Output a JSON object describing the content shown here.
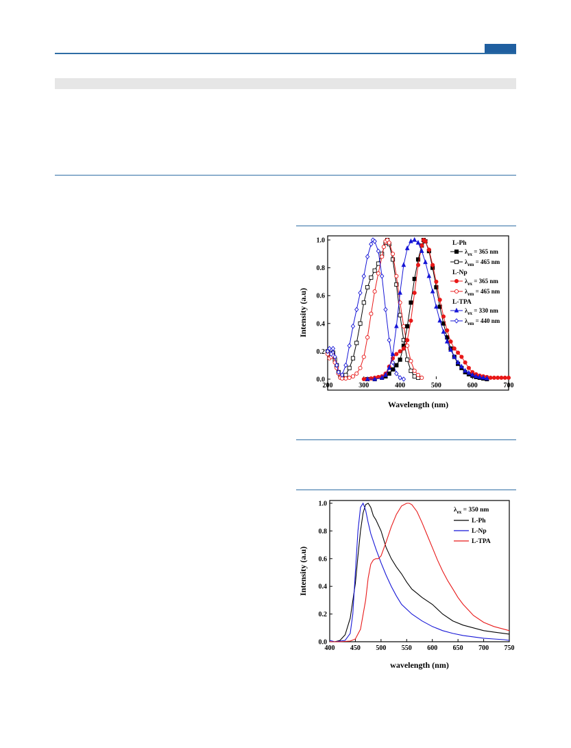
{
  "header": {
    "accent_color": "#1f5fa0",
    "rule_color": "#2e6da4"
  },
  "table_band": {
    "color": "#e6e6e6"
  },
  "chart_data": [
    {
      "type": "line",
      "xlabel": "Wavelength (nm)",
      "ylabel": "Intensity (a.u)",
      "xlim": [
        200,
        700
      ],
      "ylim": [
        0.0,
        1.0
      ],
      "xticks": [
        "200",
        "300",
        "400",
        "500",
        "600",
        "700"
      ],
      "yticks": [
        "0.0",
        "0.2",
        "0.4",
        "0.6",
        "0.8",
        "1.0"
      ],
      "grid": false,
      "legend_placement": "top-right",
      "groups": [
        {
          "label": "L-Ph",
          "entries": [
            {
              "sub": "ex",
              "value": " = 365 nm",
              "marker": "filled-square",
              "color": "#000000"
            },
            {
              "sub": "em",
              "value": " = 465 nm",
              "marker": "open-square",
              "color": "#000000"
            }
          ]
        },
        {
          "label": "L-Np",
          "entries": [
            {
              "sub": "ex",
              "value": " = 365 nm",
              "marker": "filled-circle",
              "color": "#e81818"
            },
            {
              "sub": "em",
              "value": " = 465 nm",
              "marker": "open-circle",
              "color": "#e81818"
            }
          ]
        },
        {
          "label": "L-TPA",
          "entries": [
            {
              "sub": "ex",
              "value": " = 330 nm",
              "marker": "filled-triangle",
              "color": "#1515d6"
            },
            {
              "sub": "em",
              "value": " = 440 nm",
              "marker": "open-diamond",
              "color": "#1515d6"
            }
          ]
        }
      ],
      "series": [
        {
          "color": "#000000",
          "marker": "open-square",
          "x": [
            200,
            205,
            210,
            215,
            220,
            225,
            230,
            235,
            240,
            250,
            260,
            270,
            280,
            290,
            300,
            310,
            320,
            330,
            340,
            350,
            360,
            365,
            370,
            380,
            390,
            400,
            410,
            420,
            430,
            440,
            450
          ],
          "y": [
            0.2,
            0.17,
            0.17,
            0.19,
            0.14,
            0.1,
            0.05,
            0.02,
            0.01,
            0.03,
            0.08,
            0.15,
            0.26,
            0.4,
            0.55,
            0.66,
            0.73,
            0.78,
            0.83,
            0.9,
            0.98,
            1.0,
            0.97,
            0.86,
            0.68,
            0.46,
            0.28,
            0.14,
            0.06,
            0.02,
            0.01
          ]
        },
        {
          "color": "#e81818",
          "marker": "open-circle",
          "x": [
            200,
            205,
            210,
            215,
            220,
            225,
            230,
            235,
            240,
            250,
            260,
            270,
            280,
            290,
            300,
            310,
            320,
            330,
            340,
            350,
            355,
            360,
            365,
            370,
            380,
            390,
            400,
            410,
            420,
            430,
            440,
            450,
            460
          ],
          "y": [
            0.18,
            0.15,
            0.16,
            0.17,
            0.12,
            0.08,
            0.04,
            0.01,
            0.005,
            0.005,
            0.01,
            0.02,
            0.04,
            0.08,
            0.16,
            0.3,
            0.47,
            0.63,
            0.76,
            0.88,
            0.95,
            0.99,
            1.0,
            0.98,
            0.9,
            0.74,
            0.55,
            0.38,
            0.24,
            0.13,
            0.06,
            0.03,
            0.01
          ]
        },
        {
          "color": "#1515d6",
          "marker": "open-diamond",
          "x": [
            200,
            205,
            210,
            215,
            220,
            225,
            230,
            240,
            250,
            260,
            270,
            280,
            290,
            300,
            310,
            320,
            325,
            330,
            340,
            350,
            360,
            370,
            380,
            390,
            400,
            410
          ],
          "y": [
            0.2,
            0.22,
            0.18,
            0.22,
            0.16,
            0.1,
            0.05,
            0.03,
            0.1,
            0.24,
            0.38,
            0.5,
            0.62,
            0.74,
            0.88,
            0.97,
            1.0,
            0.99,
            0.92,
            0.74,
            0.5,
            0.28,
            0.12,
            0.04,
            0.01,
            0.0
          ]
        },
        {
          "color": "#000000",
          "marker": "filled-square",
          "x": [
            310,
            330,
            350,
            360,
            370,
            380,
            390,
            400,
            410,
            420,
            430,
            440,
            450,
            460,
            465,
            470,
            480,
            490,
            500,
            510,
            520,
            530,
            540,
            550,
            560,
            570,
            580,
            590,
            600,
            610,
            620,
            630,
            640
          ],
          "y": [
            0.0,
            0.0,
            0.01,
            0.02,
            0.04,
            0.07,
            0.1,
            0.14,
            0.24,
            0.38,
            0.55,
            0.72,
            0.86,
            0.96,
            1.0,
            0.99,
            0.92,
            0.8,
            0.66,
            0.52,
            0.4,
            0.3,
            0.22,
            0.16,
            0.11,
            0.08,
            0.05,
            0.035,
            0.025,
            0.015,
            0.01,
            0.005,
            0.0
          ]
        },
        {
          "color": "#e81818",
          "marker": "filled-circle",
          "x": [
            300,
            310,
            320,
            330,
            340,
            350,
            360,
            370,
            380,
            390,
            400,
            410,
            420,
            430,
            440,
            450,
            460,
            465,
            470,
            480,
            490,
            500,
            510,
            520,
            530,
            540,
            550,
            560,
            570,
            580,
            590,
            600,
            610,
            620,
            630,
            640,
            650,
            660,
            670,
            680,
            690,
            700
          ],
          "y": [
            0.0,
            0.0,
            0.005,
            0.01,
            0.015,
            0.02,
            0.04,
            0.09,
            0.15,
            0.18,
            0.2,
            0.22,
            0.28,
            0.42,
            0.62,
            0.82,
            0.96,
            1.0,
            0.99,
            0.93,
            0.82,
            0.7,
            0.57,
            0.45,
            0.35,
            0.27,
            0.22,
            0.19,
            0.16,
            0.12,
            0.08,
            0.05,
            0.035,
            0.025,
            0.02,
            0.015,
            0.01,
            0.01,
            0.01,
            0.01,
            0.01,
            0.01
          ]
        },
        {
          "color": "#1515d6",
          "marker": "filled-triangle",
          "x": [
            310,
            330,
            350,
            360,
            370,
            380,
            390,
            400,
            410,
            420,
            430,
            440,
            450,
            460,
            470,
            480,
            490,
            500,
            510,
            520,
            530,
            540,
            550,
            560,
            570,
            580,
            590,
            600,
            610,
            620,
            630,
            640
          ],
          "y": [
            0.0,
            0.0,
            0.01,
            0.03,
            0.08,
            0.18,
            0.38,
            0.62,
            0.82,
            0.94,
            0.99,
            1.0,
            0.98,
            0.92,
            0.84,
            0.74,
            0.63,
            0.52,
            0.42,
            0.34,
            0.27,
            0.21,
            0.16,
            0.12,
            0.09,
            0.06,
            0.045,
            0.03,
            0.02,
            0.015,
            0.01,
            0.005
          ]
        }
      ]
    },
    {
      "type": "line",
      "xlabel": "wavelength (nm)",
      "ylabel": "Intensity (a.u)",
      "xlim": [
        400,
        750
      ],
      "ylim": [
        0.0,
        1.0
      ],
      "xticks": [
        "400",
        "450",
        "500",
        "550",
        "600",
        "650",
        "700",
        "750"
      ],
      "yticks": [
        "0.0",
        "0.2",
        "0.4",
        "0.6",
        "0.8",
        "1.0"
      ],
      "grid": false,
      "legend_placement": "top-right",
      "legend_header": {
        "sub": "ex",
        "value": " = 350 nm"
      },
      "series": [
        {
          "name": "L-Ph",
          "color": "#000000",
          "x": [
            400,
            410,
            420,
            430,
            440,
            450,
            455,
            460,
            465,
            470,
            475,
            480,
            485,
            490,
            500,
            510,
            520,
            530,
            540,
            550,
            560,
            570,
            580,
            600,
            620,
            640,
            660,
            680,
            700,
            720,
            740,
            750
          ],
          "y": [
            0.0,
            0.0,
            0.01,
            0.05,
            0.17,
            0.42,
            0.62,
            0.8,
            0.93,
            0.99,
            1.0,
            0.97,
            0.91,
            0.88,
            0.8,
            0.68,
            0.6,
            0.54,
            0.49,
            0.43,
            0.38,
            0.35,
            0.32,
            0.27,
            0.2,
            0.15,
            0.12,
            0.1,
            0.08,
            0.07,
            0.06,
            0.055
          ]
        },
        {
          "name": "L-Np",
          "color": "#1515d6",
          "x": [
            400,
            410,
            420,
            430,
            440,
            445,
            450,
            455,
            460,
            465,
            470,
            475,
            480,
            490,
            500,
            510,
            520,
            530,
            540,
            560,
            580,
            600,
            620,
            640,
            660,
            680,
            700,
            720,
            740,
            750
          ],
          "y": [
            0.01,
            0.0,
            0.005,
            0.01,
            0.06,
            0.2,
            0.5,
            0.8,
            0.97,
            1.0,
            0.95,
            0.86,
            0.78,
            0.67,
            0.57,
            0.48,
            0.4,
            0.33,
            0.27,
            0.2,
            0.15,
            0.11,
            0.08,
            0.06,
            0.045,
            0.035,
            0.025,
            0.02,
            0.015,
            0.01
          ]
        },
        {
          "name": "L-TPA",
          "color": "#e81818",
          "x": [
            400,
            420,
            440,
            450,
            460,
            470,
            475,
            480,
            485,
            490,
            495,
            500,
            510,
            520,
            530,
            540,
            550,
            555,
            560,
            570,
            580,
            590,
            600,
            610,
            620,
            630,
            640,
            650,
            660,
            670,
            680,
            700,
            720,
            740,
            750
          ],
          "y": [
            0.0,
            0.0,
            0.005,
            0.02,
            0.09,
            0.3,
            0.46,
            0.56,
            0.59,
            0.6,
            0.6,
            0.62,
            0.72,
            0.83,
            0.92,
            0.98,
            1.0,
            1.0,
            0.99,
            0.94,
            0.86,
            0.77,
            0.68,
            0.59,
            0.51,
            0.44,
            0.38,
            0.32,
            0.27,
            0.23,
            0.19,
            0.14,
            0.11,
            0.09,
            0.08
          ]
        }
      ]
    }
  ]
}
